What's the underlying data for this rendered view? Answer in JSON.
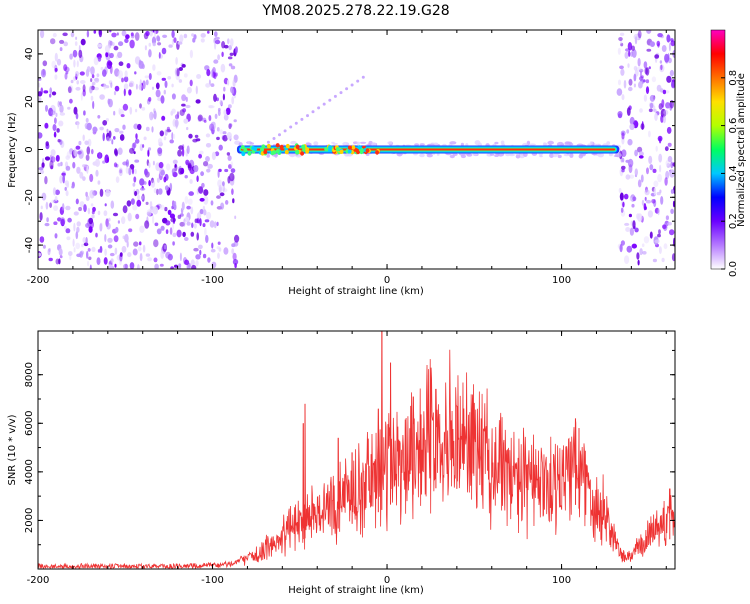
{
  "chart_data": [
    {
      "type": "heatmap",
      "title": "YM08.2025.278.22.19.G28",
      "xlabel": "Height of straight line (km)",
      "ylabel": "Frequency (Hz)",
      "xlim": [
        -200,
        165
      ],
      "ylim": [
        -50,
        50
      ],
      "xticks": [
        "-200",
        "-100",
        "0",
        "100"
      ],
      "xtick_values": [
        -200,
        -100,
        0,
        100
      ],
      "yticks": [
        "40",
        "20",
        "0",
        "-20",
        "-40"
      ],
      "ytick_values": [
        40,
        20,
        0,
        -20,
        -40
      ],
      "noise_regions": [
        [
          -200,
          -86
        ],
        [
          133,
          165
        ]
      ],
      "signal_band": {
        "x_start": -86,
        "x_end": 133,
        "frequency_hz": 0
      },
      "colorbar": {
        "label": "Normalized spectral amplitude",
        "ticks": [
          "0.0",
          "0.2",
          "0.4",
          "0.6",
          "0.8"
        ],
        "tick_values": [
          0.0,
          0.2,
          0.4,
          0.6,
          0.8
        ],
        "colors": [
          "#ffffff",
          "#b57aff",
          "#6a00ff",
          "#0000ff",
          "#00c8ff",
          "#00ff60",
          "#b4ff00",
          "#ffe000",
          "#ff7000",
          "#ff0000",
          "#ff00c0"
        ]
      }
    },
    {
      "type": "line",
      "xlabel": "Height of straight line (km)",
      "ylabel": "SNR (10 * v/v)",
      "xlim": [
        -200,
        165
      ],
      "ylim": [
        0,
        9800
      ],
      "xticks": [
        "-200",
        "-100",
        "0",
        "100"
      ],
      "xtick_values": [
        -200,
        -100,
        0,
        100
      ],
      "yticks": [
        "8000",
        "6000",
        "4000",
        "2000"
      ],
      "ytick_values": [
        8000,
        6000,
        4000,
        2000
      ],
      "color": "#ee3333",
      "envelope": [
        {
          "x": -200,
          "y": 100
        },
        {
          "x": -150,
          "y": 100
        },
        {
          "x": -95,
          "y": 150
        },
        {
          "x": -85,
          "y": 300
        },
        {
          "x": -75,
          "y": 600
        },
        {
          "x": -65,
          "y": 1000
        },
        {
          "x": -55,
          "y": 1700
        },
        {
          "x": -45,
          "y": 2200
        },
        {
          "x": -35,
          "y": 2500
        },
        {
          "x": -25,
          "y": 2900
        },
        {
          "x": -15,
          "y": 3300
        },
        {
          "x": -5,
          "y": 3900
        },
        {
          "x": 0,
          "y": 4300
        },
        {
          "x": 10,
          "y": 4900
        },
        {
          "x": 20,
          "y": 5300
        },
        {
          "x": 30,
          "y": 5600
        },
        {
          "x": 40,
          "y": 5500
        },
        {
          "x": 50,
          "y": 5000
        },
        {
          "x": 60,
          "y": 4400
        },
        {
          "x": 70,
          "y": 3800
        },
        {
          "x": 80,
          "y": 3500
        },
        {
          "x": 90,
          "y": 3600
        },
        {
          "x": 100,
          "y": 3800
        },
        {
          "x": 108,
          "y": 4400
        },
        {
          "x": 115,
          "y": 3500
        },
        {
          "x": 122,
          "y": 2600
        },
        {
          "x": 128,
          "y": 1900
        },
        {
          "x": 133,
          "y": 600
        },
        {
          "x": 138,
          "y": 450
        },
        {
          "x": 145,
          "y": 900
        },
        {
          "x": 152,
          "y": 1600
        },
        {
          "x": 160,
          "y": 2000
        },
        {
          "x": 165,
          "y": 2100
        }
      ],
      "peaks": [
        {
          "x": -47,
          "y": 6800
        },
        {
          "x": -48,
          "y": 6000
        },
        {
          "x": -28,
          "y": 5400
        },
        {
          "x": -20,
          "y": 4800
        },
        {
          "x": -5,
          "y": 6600
        },
        {
          "x": -3,
          "y": 9800
        },
        {
          "x": 2,
          "y": 8500
        },
        {
          "x": 15,
          "y": 7100
        },
        {
          "x": 28,
          "y": 7400
        },
        {
          "x": 40,
          "y": 6700
        },
        {
          "x": 108,
          "y": 6200
        },
        {
          "x": 110,
          "y": 5800
        },
        {
          "x": 162,
          "y": 3300
        }
      ]
    }
  ]
}
